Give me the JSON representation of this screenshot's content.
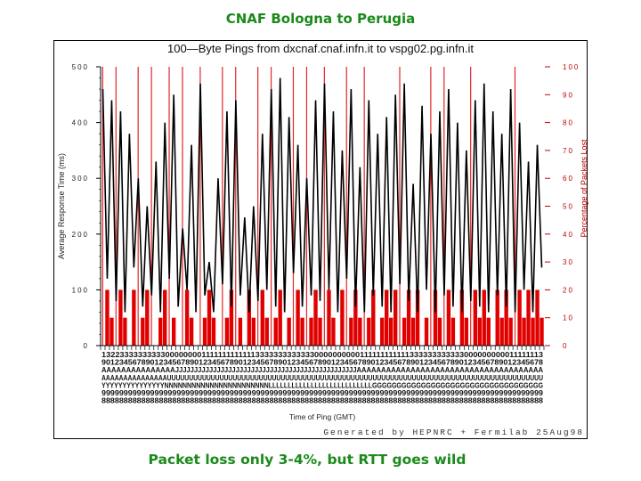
{
  "slide": {
    "title": "CNAF Bologna to Perugia",
    "caption": "Packet loss only 3-4%, but RTT goes wild"
  },
  "plot": {
    "title": "100—Byte Pings from dxcnaf.cnaf.infn.it to vspg02.pg.infn.it",
    "footer": "Generated by HEPNRC + Fermilab 25Aug98"
  },
  "colors": {
    "title_green": "#1a8a1a",
    "rtt_line": "#000000",
    "loss_bar": "#e00000",
    "right_axis": "#c00000"
  },
  "chart_data": {
    "type": "bar+line",
    "title": "100-Byte Pings from dxcnaf.cnaf.infn.it to vspg02.pg.infn.it",
    "xlabel": "Time of Ping (GMT)",
    "ylabel": "Average Response Time (ms)",
    "y2label": "Percentage of Packets Lost",
    "ylim": [
      0,
      500
    ],
    "y2lim": [
      0,
      100
    ],
    "yticks": [
      0,
      100,
      200,
      300,
      400,
      500
    ],
    "y2ticks": [
      0,
      10,
      20,
      30,
      40,
      50,
      60,
      70,
      80,
      90,
      100
    ],
    "grid": false,
    "legend": "none",
    "x_tick_count": 100,
    "x_tick_labels_note": "Dense rotated date/time stamp labels (Aug 98), illegible at this resolution",
    "series": [
      {
        "name": "Average Response Time (ms)",
        "type": "line",
        "color": "#000000",
        "description": "Highly erratic RTT oscillating between ~50 ms and ~480 ms throughout the period",
        "values": [
          460,
          120,
          440,
          80,
          420,
          60,
          380,
          140,
          300,
          70,
          250,
          90,
          330,
          60,
          400,
          120,
          450,
          70,
          210,
          100,
          360,
          60,
          470,
          90,
          150,
          60,
          300,
          110,
          420,
          70,
          440,
          90,
          230,
          60,
          250,
          80,
          380,
          100,
          460,
          70,
          480,
          60,
          410,
          130,
          360,
          70,
          300,
          90,
          440,
          80,
          470,
          100,
          420,
          60,
          350,
          120,
          460,
          70,
          320,
          60,
          440,
          90,
          380,
          70,
          410,
          60,
          450,
          110,
          470,
          80,
          290,
          60,
          430,
          100,
          380,
          60,
          420,
          90,
          460,
          70,
          400,
          60,
          350,
          80,
          440,
          70,
          470,
          60,
          420,
          90,
          380,
          70,
          460,
          60,
          400,
          100,
          330,
          60,
          360,
          140
        ]
      },
      {
        "name": "Percentage of Packets Lost",
        "type": "bar",
        "color": "#e00000",
        "description": "Mostly 0-20% loss bins with occasional full 100% spikes (rendered as vertical red lines)",
        "values": [
          100,
          20,
          10,
          100,
          20,
          10,
          0,
          20,
          100,
          10,
          20,
          100,
          0,
          10,
          20,
          100,
          10,
          0,
          100,
          20,
          10,
          0,
          100,
          10,
          20,
          10,
          0,
          100,
          10,
          20,
          100,
          10,
          0,
          20,
          10,
          100,
          20,
          10,
          100,
          10,
          20,
          0,
          10,
          100,
          20,
          10,
          100,
          10,
          20,
          10,
          100,
          20,
          10,
          0,
          20,
          100,
          10,
          20,
          10,
          100,
          10,
          20,
          0,
          10,
          20,
          10,
          20,
          100,
          10,
          20,
          10,
          20,
          0,
          10,
          100,
          20,
          10,
          100,
          20,
          10,
          0,
          20,
          10,
          100,
          20,
          10,
          20,
          10,
          0,
          20,
          10,
          20,
          10,
          100,
          20,
          10,
          20,
          10,
          20,
          10
        ]
      }
    ],
    "annotations": [
      "Generated by HEPNRC + Fermilab 25Aug98"
    ]
  }
}
